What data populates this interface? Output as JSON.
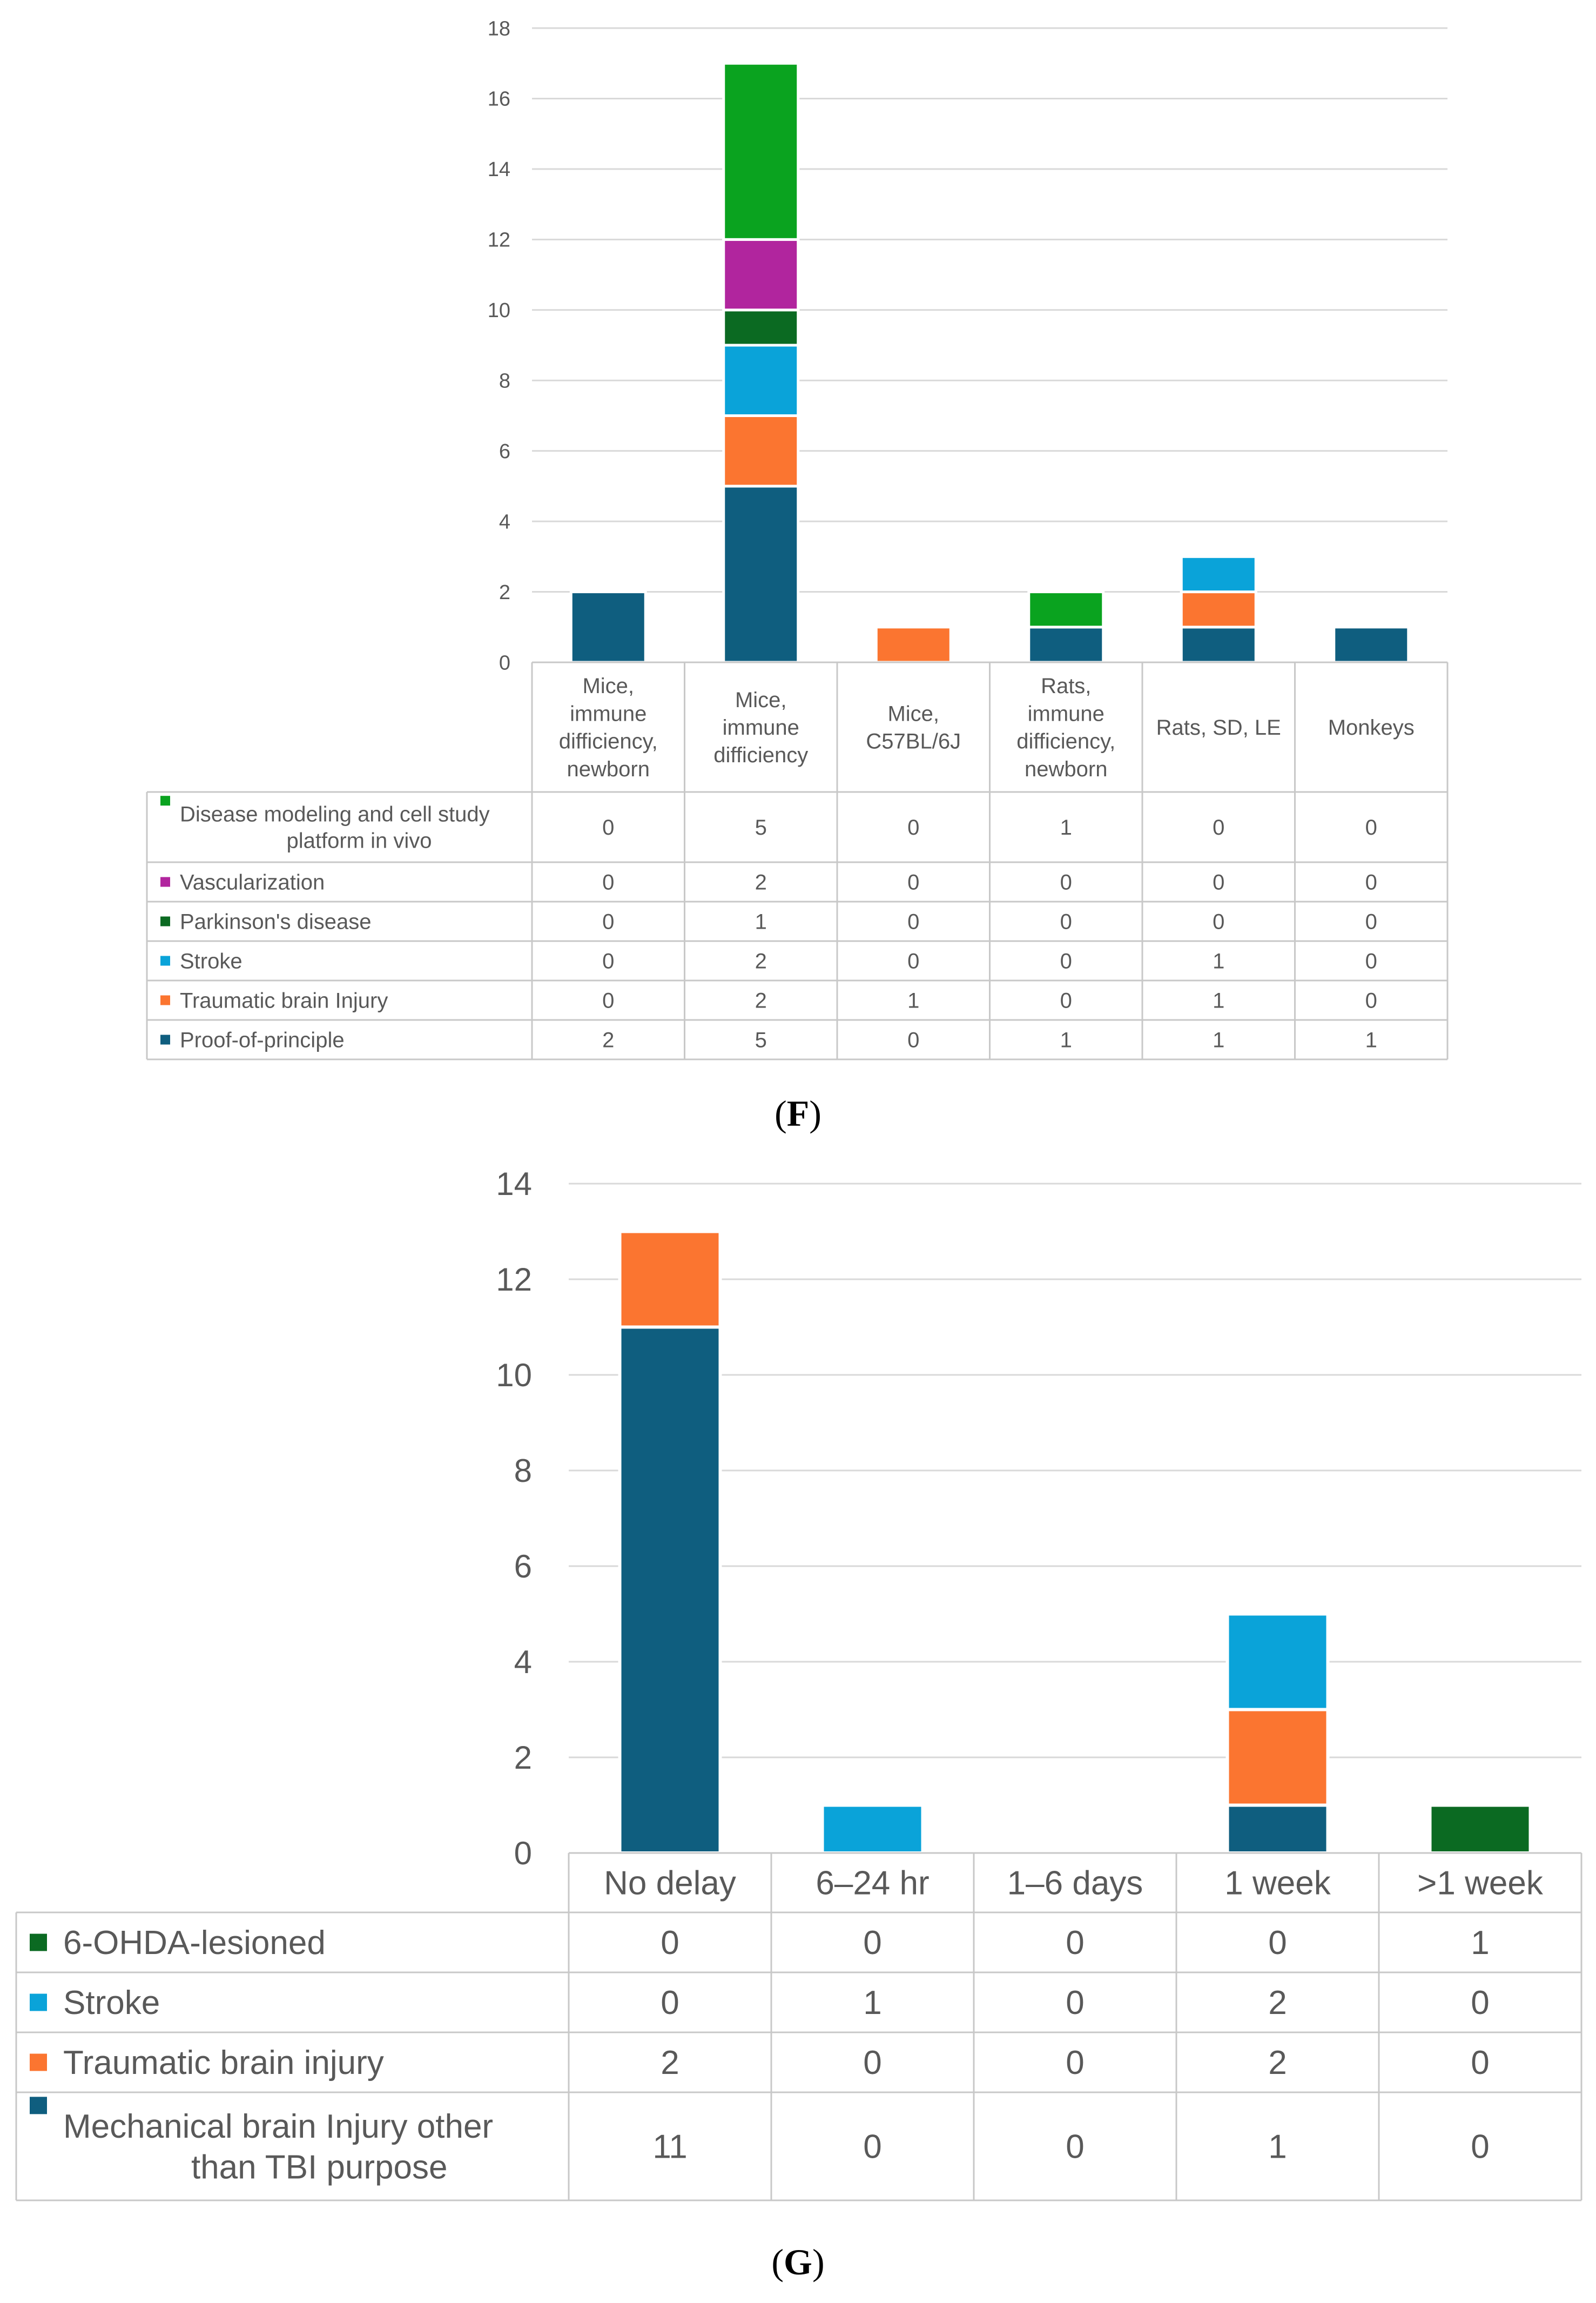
{
  "chart_data": [
    {
      "type": "bar",
      "stacked": true,
      "panel": "F",
      "categories": [
        "Mice, immune difficiency, newborn",
        "Mice, immune difficiency",
        "Mice, C57BL/6J",
        "Rats, immune difficiency, newborn",
        "Rats, SD, LE",
        "Monkeys"
      ],
      "category_lines": [
        [
          "Mice,",
          "immune",
          "difficiency,",
          "newborn"
        ],
        [
          "Mice,",
          "immune",
          "difficiency"
        ],
        [
          "Mice,",
          "C57BL/6J"
        ],
        [
          "Rats,",
          "immune",
          "difficiency,",
          "newborn"
        ],
        [
          "Rats, SD, LE"
        ],
        [
          "Monkeys"
        ]
      ],
      "series": [
        {
          "name": "Disease modeling and cell study platform in vivo",
          "name_lines": [
            "Disease modeling and cell study",
            "platform in vivo"
          ],
          "color": "#0AA31F",
          "values": [
            0,
            5,
            0,
            1,
            0,
            0
          ]
        },
        {
          "name": "Vascularization",
          "color": "#B1259E",
          "values": [
            0,
            2,
            0,
            0,
            0,
            0
          ]
        },
        {
          "name": "Parkinson's disease",
          "color": "#0B6A22",
          "values": [
            0,
            1,
            0,
            0,
            0,
            0
          ]
        },
        {
          "name": "Stroke",
          "color": "#0AA3D9",
          "values": [
            0,
            2,
            0,
            0,
            1,
            0
          ]
        },
        {
          "name": "Traumatic brain Injury",
          "color": "#FB7530",
          "values": [
            0,
            2,
            1,
            0,
            1,
            0
          ]
        },
        {
          "name": "Proof-of-principle",
          "color": "#0F5E7F",
          "values": [
            2,
            5,
            0,
            1,
            1,
            1
          ]
        }
      ],
      "ylim": [
        0,
        18
      ],
      "yticks": [
        0,
        2,
        4,
        6,
        8,
        10,
        12,
        14,
        16,
        18
      ],
      "grid": true,
      "legend": "data table",
      "caption": "F"
    },
    {
      "type": "bar",
      "stacked": true,
      "panel": "G",
      "categories": [
        "No delay",
        "6–24 hr",
        "1–6 days",
        "1 week",
        ">1 week"
      ],
      "category_lines": [
        [
          "No delay"
        ],
        [
          "6–24 hr"
        ],
        [
          "1–6 days"
        ],
        [
          "1 week"
        ],
        [
          ">1 week"
        ]
      ],
      "series": [
        {
          "name": "6-OHDA-lesioned",
          "color": "#0B6A22",
          "values": [
            0,
            0,
            0,
            0,
            1
          ]
        },
        {
          "name": "Stroke",
          "color": "#0AA3D9",
          "values": [
            0,
            1,
            0,
            2,
            0
          ]
        },
        {
          "name": "Traumatic brain injury",
          "color": "#FB7530",
          "values": [
            2,
            0,
            0,
            2,
            0
          ]
        },
        {
          "name": "Mechanical brain Injury other than TBI purpose",
          "name_lines": [
            "Mechanical brain Injury other",
            "than TBI purpose"
          ],
          "color": "#0F5E7F",
          "values": [
            11,
            0,
            0,
            1,
            0
          ]
        }
      ],
      "ylim": [
        0,
        14
      ],
      "yticks": [
        0,
        2,
        4,
        6,
        8,
        10,
        12,
        14
      ],
      "grid": true,
      "legend": "data table",
      "caption": "G"
    }
  ]
}
